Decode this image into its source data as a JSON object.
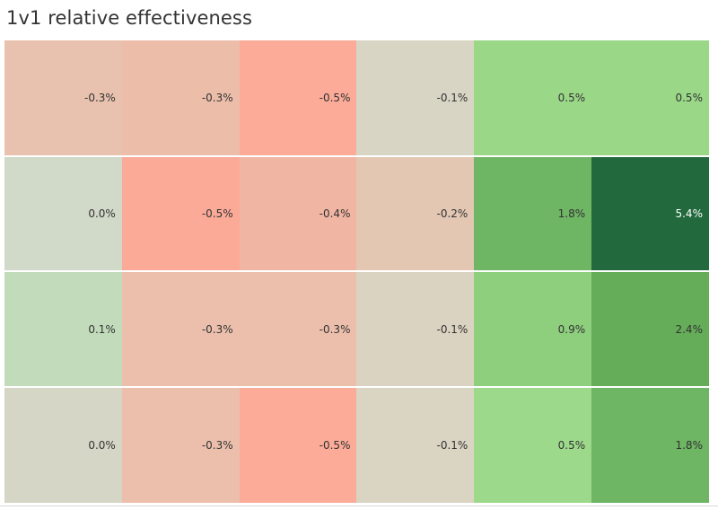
{
  "title": "1v1 relative effectiveness",
  "chart_data": {
    "type": "heatmap",
    "title": "1v1 relative effectiveness",
    "value_format": "percent",
    "rows": [
      [
        {
          "value": -0.3,
          "label": "-0.3%",
          "color": "#e9c2af"
        },
        {
          "value": -0.3,
          "label": "-0.3%",
          "color": "#ecbeaa"
        },
        {
          "value": -0.5,
          "label": "-0.5%",
          "color": "#fbab98"
        },
        {
          "value": -0.1,
          "label": "-0.1%",
          "color": "#d8d5c4"
        },
        {
          "value": 0.5,
          "label": "0.5%",
          "color": "#9ad888"
        },
        {
          "value": 0.5,
          "label": "0.5%",
          "color": "#9ad888"
        }
      ],
      [
        {
          "value": 0.0,
          "label": "0.0%",
          "color": "#d1d9c8"
        },
        {
          "value": -0.5,
          "label": "-0.5%",
          "color": "#fbaa98"
        },
        {
          "value": -0.4,
          "label": "-0.4%",
          "color": "#f1b6a3"
        },
        {
          "value": -0.2,
          "label": "-0.2%",
          "color": "#e4c7b3"
        },
        {
          "value": 1.8,
          "label": "1.8%",
          "color": "#6eb564"
        },
        {
          "value": 5.4,
          "label": "5.4%",
          "color": "#22693d"
        }
      ],
      [
        {
          "value": 0.1,
          "label": "0.1%",
          "color": "#c2dcbb"
        },
        {
          "value": -0.3,
          "label": "-0.3%",
          "color": "#ecbfac"
        },
        {
          "value": -0.3,
          "label": "-0.3%",
          "color": "#ecbfac"
        },
        {
          "value": -0.1,
          "label": "-0.1%",
          "color": "#dbd3c2"
        },
        {
          "value": 0.9,
          "label": "0.9%",
          "color": "#8ecf7e"
        },
        {
          "value": 2.4,
          "label": "2.4%",
          "color": "#65ad59"
        }
      ],
      [
        {
          "value": 0.0,
          "label": "0.0%",
          "color": "#d5d6c5"
        },
        {
          "value": -0.3,
          "label": "-0.3%",
          "color": "#ecbfac"
        },
        {
          "value": -0.5,
          "label": "-0.5%",
          "color": "#fbab98"
        },
        {
          "value": -0.1,
          "label": "-0.1%",
          "color": "#dad4c3"
        },
        {
          "value": 0.5,
          "label": "0.5%",
          "color": "#9cd98a"
        },
        {
          "value": 1.8,
          "label": "1.8%",
          "color": "#6eb564"
        }
      ]
    ],
    "grid": false,
    "legend": "none",
    "colors": {
      "text_on_light": "#333333",
      "text_on_dark": "#ffffff",
      "dark_threshold": 3.0
    }
  }
}
